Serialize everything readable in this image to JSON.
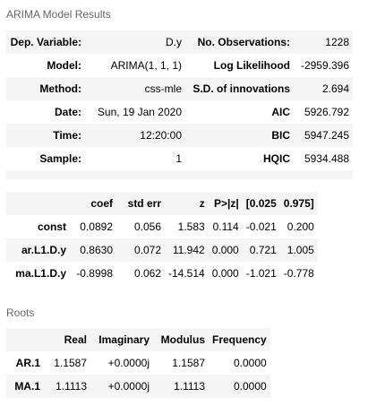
{
  "captions": {
    "model_results": "ARIMA Model Results",
    "roots": "Roots"
  },
  "summary": {
    "rows": [
      {
        "k1": "Dep. Variable:",
        "v1": "D.y",
        "k2": "No. Observations:",
        "v2": "1228"
      },
      {
        "k1": "Model:",
        "v1": "ARIMA(1, 1, 1)",
        "k2": "Log Likelihood",
        "v2": "-2959.396"
      },
      {
        "k1": "Method:",
        "v1": "css-mle",
        "k2": "S.D. of innovations",
        "v2": "2.694"
      },
      {
        "k1": "Date:",
        "v1": "Sun, 19 Jan 2020",
        "k2": "AIC",
        "v2": "5926.792"
      },
      {
        "k1": "Time:",
        "v1": "12:20:00",
        "k2": "BIC",
        "v2": "5947.245"
      },
      {
        "k1": "Sample:",
        "v1": "1",
        "k2": "HQIC",
        "v2": "5934.488"
      }
    ]
  },
  "coefficients": {
    "headers": [
      "",
      "coef",
      "std err",
      "z",
      "P>|z|",
      "[0.025",
      "0.975]"
    ],
    "rows": [
      {
        "name": "const",
        "cells": [
          "0.0892",
          "0.056",
          "1.583",
          "0.114",
          "-0.021",
          "0.200"
        ]
      },
      {
        "name": "ar.L1.D.y",
        "cells": [
          "0.8630",
          "0.072",
          "11.942",
          "0.000",
          "0.721",
          "1.005"
        ]
      },
      {
        "name": "ma.L1.D.y",
        "cells": [
          "-0.8998",
          "0.062",
          "-14.514",
          "0.000",
          "-1.021",
          "-0.778"
        ]
      }
    ]
  },
  "roots": {
    "headers": [
      "",
      "Real",
      "Imaginary",
      "Modulus",
      "Frequency"
    ],
    "rows": [
      {
        "name": "AR.1",
        "cells": [
          "1.1587",
          "+0.0000j",
          "1.1587",
          "0.0000"
        ]
      },
      {
        "name": "MA.1",
        "cells": [
          "1.1113",
          "+0.0000j",
          "1.1113",
          "0.0000"
        ]
      }
    ]
  }
}
